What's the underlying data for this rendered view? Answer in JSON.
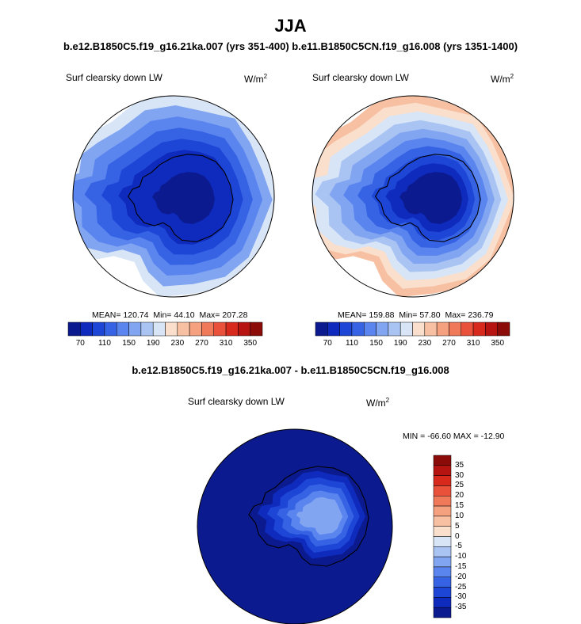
{
  "title": "JJA",
  "subtitle_top": "b.e12.B1850C5.f19_g16.21ka.007 (yrs 351-400) b.e11.B1850C5CN.f19_g16.008 (yrs 1351-1400)",
  "subtitle_bottom": "b.e12.B1850C5.f19_g16.21ka.007 - b.e11.B1850C5CN.f19_g16.008",
  "units": {
    "base": "W/m",
    "exp": "2"
  },
  "colors": {
    "absolute_scale": [
      "#0b1a8f",
      "#0f2bbd",
      "#1e46d6",
      "#3563e4",
      "#5a85ee",
      "#82a5f2",
      "#a9c3f3",
      "#d7e5f7",
      "#f9dfcc",
      "#f8c0a2",
      "#f5a07e",
      "#f0795a",
      "#e9513a",
      "#d72a1c",
      "#b51410",
      "#8a0b08"
    ],
    "difference_scale": [
      "#0b1a8f",
      "#0f2bbd",
      "#1e46d6",
      "#3563e4",
      "#5a85ee",
      "#82a5f2",
      "#a9c3f3",
      "#d7e5f7",
      "#f9dfcc",
      "#f8c0a2",
      "#f5a07e",
      "#f0795a",
      "#e9513a",
      "#d72a1c",
      "#b51410",
      "#8a0b08"
    ],
    "coastline": "#000000"
  },
  "chart_data": [
    {
      "type": "heatmap",
      "projection": "south-polar-stereographic",
      "title": "Surf clearsky down LW",
      "units": "W/m2",
      "stats": {
        "mean": 120.74,
        "min": 44.1,
        "max": 207.28
      },
      "stats_text": {
        "mean": "MEAN= 120.74",
        "min": "Min=  44.10",
        "max": "Max= 207.28"
      },
      "rings": [
        {
          "level": 195,
          "value_label": "190-210",
          "color_index": 7
        },
        {
          "level": 175,
          "value_label": "170-190",
          "color_index": 5
        },
        {
          "level": 155,
          "value_label": "150-170",
          "color_index": 4
        },
        {
          "level": 135,
          "value_label": "130-150",
          "color_index": 3
        },
        {
          "level": 115,
          "value_label": "110-130",
          "color_index": 2
        },
        {
          "level": 95,
          "value_label": "90-110",
          "color_index": 1
        },
        {
          "level": 75,
          "value_label": "70-90",
          "color_index": 1
        },
        {
          "level": 55,
          "value_label": "50-70",
          "color_index": 0
        }
      ],
      "colorbar": {
        "levels": [
          60,
          70,
          80,
          90,
          100,
          110,
          120,
          130,
          140,
          150,
          160,
          170,
          180,
          190,
          200,
          210,
          220,
          230,
          240,
          250,
          260,
          270,
          280,
          290,
          300,
          310,
          320,
          330,
          340,
          350,
          360
        ],
        "tick_labels": [
          "70",
          "110",
          "150",
          "190",
          "230",
          "270",
          "310",
          "350"
        ]
      }
    },
    {
      "type": "heatmap",
      "projection": "south-polar-stereographic",
      "title": "Surf clearsky down LW",
      "units": "W/m2",
      "stats": {
        "mean": 159.88,
        "min": 57.8,
        "max": 236.79
      },
      "stats_text": {
        "mean": "MEAN= 159.88",
        "min": "Min=  57.80",
        "max": "Max= 236.79"
      },
      "rings": [
        {
          "level": 235,
          "value_label": "230-250",
          "color_index": 9
        },
        {
          "level": 215,
          "value_label": "210-230",
          "color_index": 8
        },
        {
          "level": 195,
          "value_label": "190-210",
          "color_index": 7
        },
        {
          "level": 175,
          "value_label": "170-190",
          "color_index": 6
        },
        {
          "level": 155,
          "value_label": "150-170",
          "color_index": 5
        },
        {
          "level": 135,
          "value_label": "130-150",
          "color_index": 4
        },
        {
          "level": 115,
          "value_label": "110-130",
          "color_index": 3
        },
        {
          "level": 95,
          "value_label": "90-110",
          "color_index": 2
        },
        {
          "level": 75,
          "value_label": "70-90",
          "color_index": 1
        },
        {
          "level": 60,
          "value_label": "<70",
          "color_index": 0
        }
      ],
      "colorbar": {
        "levels": [
          60,
          70,
          80,
          90,
          100,
          110,
          120,
          130,
          140,
          150,
          160,
          170,
          180,
          190,
          200,
          210,
          220,
          230,
          240,
          250,
          260,
          270,
          280,
          290,
          300,
          310,
          320,
          330,
          340,
          350,
          360
        ],
        "tick_labels": [
          "70",
          "110",
          "150",
          "190",
          "230",
          "270",
          "310",
          "350"
        ]
      }
    },
    {
      "type": "heatmap",
      "projection": "south-polar-stereographic",
      "title": "Surf clearsky down LW",
      "units": "W/m2",
      "stats": {
        "min": -66.6,
        "max": -12.9
      },
      "stats_text": {
        "line": "MIN = -66.60 MAX = -12.90"
      },
      "rings": [
        {
          "level": -37.5,
          "value_label": "<-35",
          "color_index": 0
        },
        {
          "level": -32.5,
          "value_label": "-35 to -30",
          "color_index": 1
        },
        {
          "level": -27.5,
          "value_label": "-30 to -25",
          "color_index": 2
        },
        {
          "level": -22.5,
          "value_label": "-25 to -20",
          "color_index": 3
        },
        {
          "level": -17.5,
          "value_label": "-20 to -15",
          "color_index": 4
        },
        {
          "level": -12.5,
          "value_label": "-15 to -10",
          "color_index": 5
        }
      ],
      "colorbar": {
        "orientation": "vertical",
        "tick_labels": [
          "35",
          "30",
          "25",
          "20",
          "15",
          "10",
          "5",
          "0",
          "-5",
          "-10",
          "-15",
          "-20",
          "-25",
          "-30",
          "-35"
        ]
      }
    }
  ]
}
